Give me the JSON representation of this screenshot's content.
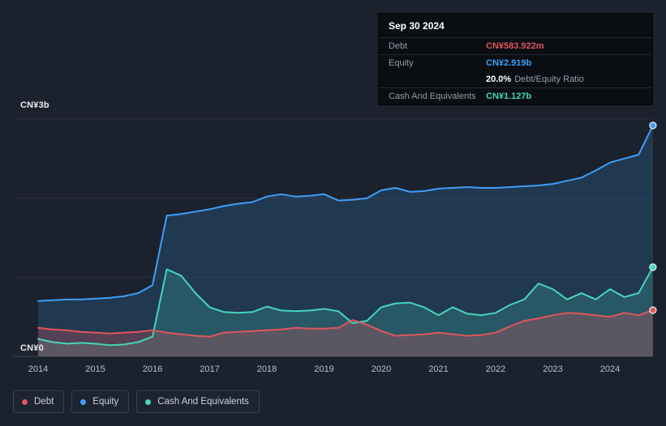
{
  "panel": {
    "y_axis_top_label": "CN¥3b",
    "y_axis_bottom_label": "CN¥0"
  },
  "colors": {
    "debt": "#e0565c",
    "equity": "#3f9ef7",
    "cash": "#45d6bb",
    "background": "#1b212d",
    "tooltip_background": "#0a0d12",
    "axis_text": "#b9c0cb",
    "grid_line": "rgba(255,255,255,0.07)",
    "axis_line": "#3f4656"
  },
  "tooltip": {
    "date": "Sep 30 2024",
    "rows": [
      {
        "label": "Debt",
        "value": "CN¥583.922m",
        "color_key": "debt"
      },
      {
        "label": "Equity",
        "value": "CN¥2.919b",
        "color_key": "equity"
      },
      {
        "label": "Cash And Equivalents",
        "value": "CN¥1.127b",
        "color_key": "cash"
      }
    ],
    "ratio_value": "20.0%",
    "ratio_label": "Debt/Equity Ratio"
  },
  "legend": {
    "items": [
      {
        "label": "Debt",
        "color_key": "debt"
      },
      {
        "label": "Equity",
        "color_key": "equity"
      },
      {
        "label": "Cash And Equivalents",
        "color_key": "cash"
      }
    ]
  },
  "chart_data": {
    "type": "area",
    "title": "Debt, Equity and Cash history (quarterly), CN¥ billions",
    "x_unit": "year",
    "xlim": [
      2014,
      2024.75
    ],
    "ylim": [
      0,
      3
    ],
    "grid": true,
    "legend_position": "bottom-left",
    "y_axis_labels": {
      "top": "CN¥3b",
      "bottom": "CN¥0"
    },
    "x_ticks": [
      2014,
      2015,
      2016,
      2017,
      2018,
      2019,
      2020,
      2021,
      2022,
      2023,
      2024
    ],
    "x": [
      2014,
      2014.25,
      2014.5,
      2014.75,
      2015,
      2015.25,
      2015.5,
      2015.75,
      2016,
      2016.25,
      2016.5,
      2016.75,
      2017,
      2017.25,
      2017.5,
      2017.75,
      2018,
      2018.25,
      2018.5,
      2018.75,
      2019,
      2019.25,
      2019.5,
      2019.75,
      2020,
      2020.25,
      2020.5,
      2020.75,
      2021,
      2021.25,
      2021.5,
      2021.75,
      2022,
      2022.25,
      2022.5,
      2022.75,
      2023,
      2023.25,
      2023.5,
      2023.75,
      2024,
      2024.25,
      2024.5,
      2024.75
    ],
    "series": [
      {
        "name": "Equity",
        "color": "#3f9ef7",
        "fill": "rgba(63,158,247,0.18)",
        "last_value_label": "CN¥2.919b",
        "values": [
          0.7,
          0.71,
          0.72,
          0.72,
          0.73,
          0.74,
          0.76,
          0.8,
          0.9,
          1.78,
          1.8,
          1.83,
          1.86,
          1.9,
          1.93,
          1.95,
          2.02,
          2.05,
          2.02,
          2.03,
          2.05,
          1.97,
          1.98,
          2.0,
          2.1,
          2.13,
          2.08,
          2.09,
          2.12,
          2.13,
          2.14,
          2.13,
          2.13,
          2.14,
          2.15,
          2.16,
          2.18,
          2.22,
          2.26,
          2.35,
          2.45,
          2.5,
          2.55,
          2.919
        ]
      },
      {
        "name": "Cash And Equivalents",
        "color": "#45d6bb",
        "fill": "rgba(69,214,187,0.20)",
        "last_value_label": "CN¥1.127b",
        "values": [
          0.22,
          0.18,
          0.16,
          0.17,
          0.16,
          0.14,
          0.15,
          0.18,
          0.25,
          1.1,
          1.02,
          0.8,
          0.62,
          0.56,
          0.55,
          0.56,
          0.63,
          0.58,
          0.57,
          0.58,
          0.6,
          0.57,
          0.42,
          0.45,
          0.62,
          0.67,
          0.68,
          0.62,
          0.52,
          0.62,
          0.54,
          0.52,
          0.55,
          0.65,
          0.72,
          0.92,
          0.85,
          0.72,
          0.8,
          0.72,
          0.85,
          0.75,
          0.8,
          1.127
        ]
      },
      {
        "name": "Debt",
        "color": "#e0565c",
        "fill": "rgba(224,86,92,0.28)",
        "last_value_label": "CN¥583.922m",
        "values": [
          0.36,
          0.34,
          0.33,
          0.31,
          0.3,
          0.29,
          0.3,
          0.31,
          0.33,
          0.3,
          0.28,
          0.26,
          0.25,
          0.3,
          0.31,
          0.32,
          0.33,
          0.34,
          0.36,
          0.35,
          0.35,
          0.36,
          0.46,
          0.4,
          0.32,
          0.26,
          0.27,
          0.28,
          0.3,
          0.28,
          0.26,
          0.27,
          0.3,
          0.38,
          0.45,
          0.48,
          0.52,
          0.55,
          0.54,
          0.52,
          0.5,
          0.55,
          0.52,
          0.584
        ]
      }
    ]
  }
}
